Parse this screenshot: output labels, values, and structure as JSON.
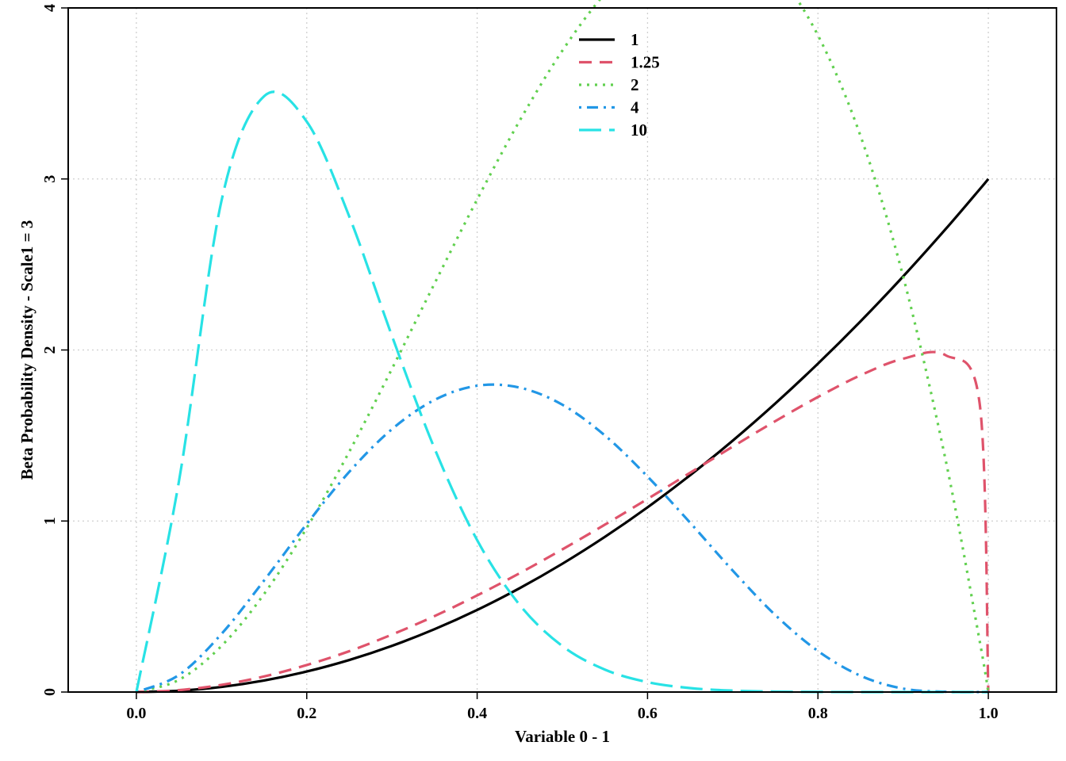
{
  "chart_data": {
    "type": "line",
    "title": "",
    "xlabel": "Variable 0 - 1",
    "ylabel": "Beta Probability Density - Scale1 = 3",
    "xlim": [
      -0.08,
      1.08
    ],
    "ylim": [
      0,
      4
    ],
    "x_ticks": [
      0.0,
      0.2,
      0.4,
      0.6,
      0.8,
      1.0
    ],
    "x_tick_labels": [
      "0.0",
      "0.2",
      "0.4",
      "0.6",
      "0.8",
      "1.0"
    ],
    "y_ticks": [
      0,
      1,
      2,
      3,
      4
    ],
    "y_tick_labels": [
      "0",
      "1",
      "2",
      "3",
      "4"
    ],
    "grid": true,
    "legend_position": "top-center",
    "x": [
      0.0,
      0.05,
      0.1,
      0.15,
      0.2,
      0.25,
      0.3,
      0.35,
      0.4,
      0.45,
      0.5,
      0.55,
      0.6,
      0.65,
      0.7,
      0.75,
      0.8,
      0.85,
      0.9,
      0.95,
      0.99,
      1.0
    ],
    "series": [
      {
        "name": "1",
        "color": "#000000",
        "dash": "solid",
        "values": [
          0,
          0.0075,
          0.03,
          0.0675,
          0.12,
          0.1875,
          0.27,
          0.3675,
          0.48,
          0.6075,
          0.75,
          0.9075,
          1.08,
          1.2675,
          1.47,
          1.6875,
          1.92,
          2.1675,
          2.43,
          2.7075,
          2.9403,
          3.0
        ]
      },
      {
        "name": "1.25",
        "color": "#DF536B",
        "dash": "dashed",
        "values": [
          0,
          0.011,
          0.042,
          0.091,
          0.158,
          0.239,
          0.336,
          0.444,
          0.565,
          0.695,
          0.834,
          0.979,
          1.129,
          1.282,
          1.435,
          1.584,
          1.725,
          1.852,
          1.949,
          1.969,
          1.68,
          0
        ]
      },
      {
        "name": "2",
        "color": "#61D04F",
        "dash": "dotted",
        "values": [
          0,
          0.0713,
          0.27,
          0.5738,
          0.96,
          1.4063,
          1.89,
          2.3888,
          2.88,
          3.3413,
          3.75,
          4.0838,
          4.32,
          4.4363,
          4.41,
          4.2188,
          3.84,
          3.2513,
          2.43,
          1.3538,
          0.294,
          0
        ]
      },
      {
        "name": "4",
        "color": "#2297E6",
        "dash": "dotdash",
        "values": [
          0,
          0.0998,
          0.3402,
          0.6528,
          0.983,
          1.288,
          1.537,
          1.708,
          1.791,
          1.78,
          1.68,
          1.5,
          1.26,
          0.99,
          0.71,
          0.45,
          0.24,
          0.095,
          0.02,
          0.0015,
          0,
          0
        ]
      },
      {
        "name": "10",
        "color": "#28E2E5",
        "dash": "longdash",
        "values": [
          0,
          1.233,
          2.874,
          3.484,
          3.335,
          2.779,
          2.082,
          1.424,
          0.888,
          0.509,
          0.269,
          0.131,
          0.0578,
          0.0232,
          0.0083,
          0.0026,
          0.0007,
          0.0001,
          0,
          0,
          0,
          0
        ]
      }
    ]
  }
}
